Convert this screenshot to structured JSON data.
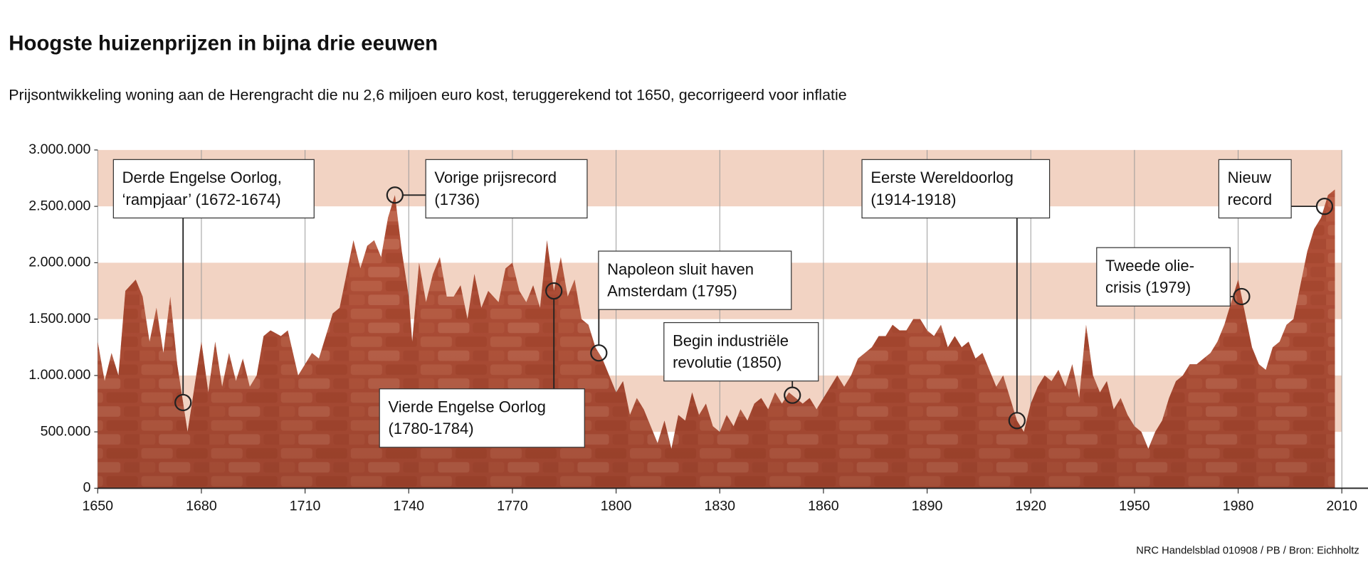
{
  "chart_data": {
    "type": "area",
    "title": "Hoogste huizenprijzen in bijna drie eeuwen",
    "subtitle": "Prijsontwikkeling woning aan de Herengracht die nu 2,6 miljoen euro kost, teruggerekend tot 1650, gecorrigeerd voor inflatie",
    "source": "NRC Handelsblad 010908 / PB / Bron: Eichholtz",
    "color": "#b4523a",
    "band_color": "#f2d3c3",
    "xlim": [
      1650,
      2010
    ],
    "xticks": [
      1650,
      1680,
      1710,
      1740,
      1770,
      1800,
      1830,
      1860,
      1890,
      1920,
      1950,
      1980,
      2010
    ],
    "ylim": [
      0,
      3000000
    ],
    "yticks": [
      0,
      {
        "value": 500000,
        "label": "500.000"
      },
      {
        "value": 1000000,
        "label": "1.000.000"
      },
      {
        "value": 1500000,
        "label": "1.500.000"
      },
      {
        "value": 2000000,
        "label": "2.000.000"
      },
      {
        "value": 2500000,
        "label": "2.500.000"
      },
      {
        "value": 3000000,
        "label": "3.000.000"
      }
    ],
    "grid": true,
    "x": [
      1650,
      1652,
      1654,
      1656,
      1658,
      1661,
      1663,
      1665,
      1667,
      1669,
      1671,
      1673,
      1676,
      1678,
      1680,
      1682,
      1684,
      1686,
      1688,
      1690,
      1692,
      1694,
      1696,
      1698,
      1700,
      1703,
      1705,
      1708,
      1710,
      1712,
      1714,
      1716,
      1718,
      1720,
      1722,
      1724,
      1726,
      1728,
      1730,
      1732,
      1734,
      1736,
      1738,
      1740,
      1741,
      1743,
      1745,
      1747,
      1749,
      1751,
      1753,
      1755,
      1757,
      1759,
      1761,
      1763,
      1766,
      1768,
      1770,
      1772,
      1774,
      1776,
      1778,
      1780,
      1782,
      1784,
      1786,
      1788,
      1790,
      1792,
      1794,
      1796,
      1798,
      1800,
      1802,
      1804,
      1806,
      1808,
      1810,
      1812,
      1814,
      1816,
      1818,
      1820,
      1822,
      1824,
      1826,
      1828,
      1830,
      1832,
      1834,
      1836,
      1838,
      1840,
      1842,
      1844,
      1846,
      1848,
      1850,
      1852,
      1854,
      1856,
      1858,
      1860,
      1862,
      1864,
      1866,
      1868,
      1870,
      1872,
      1874,
      1876,
      1878,
      1880,
      1882,
      1884,
      1886,
      1888,
      1890,
      1892,
      1894,
      1896,
      1898,
      1900,
      1902,
      1904,
      1906,
      1908,
      1910,
      1912,
      1914,
      1916,
      1918,
      1920,
      1922,
      1924,
      1926,
      1928,
      1930,
      1932,
      1934,
      1936,
      1938,
      1940,
      1942,
      1944,
      1946,
      1948,
      1950,
      1952,
      1954,
      1956,
      1958,
      1960,
      1962,
      1964,
      1966,
      1968,
      1970,
      1972,
      1974,
      1976,
      1978,
      1980,
      1982,
      1984,
      1986,
      1988,
      1990,
      1992,
      1994,
      1996,
      1998,
      2000,
      2002,
      2004,
      2006,
      2008
    ],
    "values": [
      1300000,
      950000,
      1200000,
      1000000,
      1750000,
      1850000,
      1700000,
      1300000,
      1600000,
      1200000,
      1700000,
      1100000,
      500000,
      900000,
      1300000,
      850000,
      1300000,
      900000,
      1200000,
      950000,
      1150000,
      900000,
      1000000,
      1350000,
      1400000,
      1350000,
      1400000,
      1000000,
      1100000,
      1200000,
      1150000,
      1350000,
      1550000,
      1600000,
      1900000,
      2200000,
      1950000,
      2150000,
      2200000,
      2050000,
      2400000,
      2600000,
      2100000,
      1700000,
      1300000,
      2000000,
      1650000,
      1900000,
      2050000,
      1700000,
      1700000,
      1800000,
      1500000,
      1900000,
      1600000,
      1750000,
      1650000,
      1950000,
      2000000,
      1750000,
      1650000,
      1800000,
      1600000,
      2200000,
      1750000,
      2050000,
      1700000,
      1850000,
      1500000,
      1450000,
      1250000,
      1150000,
      1000000,
      850000,
      950000,
      650000,
      800000,
      700000,
      550000,
      400000,
      600000,
      350000,
      650000,
      600000,
      850000,
      650000,
      750000,
      550000,
      500000,
      650000,
      550000,
      700000,
      600000,
      750000,
      800000,
      700000,
      850000,
      750000,
      850000,
      800000,
      750000,
      800000,
      700000,
      800000,
      900000,
      1000000,
      900000,
      1000000,
      1150000,
      1200000,
      1250000,
      1350000,
      1350000,
      1450000,
      1400000,
      1400000,
      1500000,
      1500000,
      1400000,
      1350000,
      1450000,
      1250000,
      1350000,
      1250000,
      1300000,
      1150000,
      1200000,
      1050000,
      900000,
      1000000,
      800000,
      600000,
      500000,
      750000,
      900000,
      1000000,
      950000,
      1050000,
      900000,
      1100000,
      800000,
      1450000,
      1000000,
      850000,
      950000,
      700000,
      800000,
      650000,
      550000,
      500000,
      350000,
      500000,
      600000,
      800000,
      950000,
      1000000,
      1100000,
      1100000,
      1150000,
      1200000,
      1300000,
      1450000,
      1650000,
      1850000,
      1550000,
      1250000,
      1100000,
      1050000,
      1250000,
      1300000,
      1450000,
      1500000,
      1800000,
      2100000,
      2300000,
      2400000,
      2600000,
      2650000
    ],
    "annotations": [
      {
        "lines": [
          "Derde Engelse Oorlog,",
          "‘rampjaar’ (1672-1674)"
        ],
        "x": 1674.7
      },
      {
        "lines": [
          "Vorige prijsrecord",
          "(1736)"
        ],
        "x": 1736
      },
      {
        "lines": [
          "Napoleon sluit haven",
          "Amsterdam (1795)"
        ],
        "x": 1795
      },
      {
        "lines": [
          "Vierde Engelse Oorlog",
          "(1780-1784)"
        ],
        "x": 1782
      },
      {
        "lines": [
          "Begin industriële",
          "revolutie (1850)"
        ],
        "x": 1851
      },
      {
        "lines": [
          "Eerste Wereldoorlog",
          "(1914-1918)"
        ],
        "x": 1916
      },
      {
        "lines": [
          "Tweede olie-",
          "crisis (1979)"
        ],
        "x": 1981
      },
      {
        "lines": [
          "Nieuw",
          "record"
        ],
        "x": 2005
      }
    ]
  }
}
